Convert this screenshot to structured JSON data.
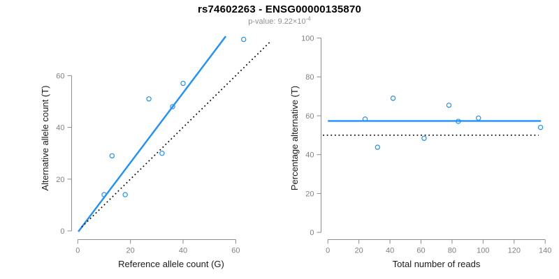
{
  "header": {
    "title": "rs74602263 - ENSG00000135870",
    "subtitle_prefix": "p-value: ",
    "subtitle_value": "9.22",
    "subtitle_times": "×10",
    "subtitle_exponent": "-4"
  },
  "colors": {
    "accent": "#1E90FF",
    "foreground": "#000000",
    "axis_line": "#8c8c8c",
    "tick_label": "#808080",
    "axis_title": "#1a1a1a",
    "subtitle": "#909090",
    "background": "#ffffff"
  },
  "chart_data": [
    {
      "type": "scatter",
      "name": "allele-counts-scatter",
      "xlabel": "Reference allele count (G)",
      "ylabel": "Alternative allele count (T)",
      "xlim": [
        -1.94,
        72.9
      ],
      "ylim": [
        -3.5,
        75.2
      ],
      "x_ticks": [
        0,
        20,
        40,
        60
      ],
      "y_ticks": [
        0,
        20,
        40,
        60
      ],
      "grid": false,
      "legend": "none",
      "points": [
        [
          10,
          14
        ],
        [
          13,
          29
        ],
        [
          18,
          14
        ],
        [
          27,
          51
        ],
        [
          32,
          30
        ],
        [
          36,
          48
        ],
        [
          40,
          57
        ],
        [
          63,
          74
        ]
      ],
      "lines": [
        {
          "name": "regression-line",
          "x1": 0.2,
          "y1": -0.3,
          "x2": 56.2,
          "y2": 75.2,
          "style": "solid",
          "color_key": "accent",
          "width": 2.4
        },
        {
          "name": "identity-line",
          "x1": 1.5,
          "y1": 1.5,
          "x2": 72.9,
          "y2": 72.9,
          "style": "dotted",
          "color_key": "foreground",
          "width": 1.7
        }
      ]
    },
    {
      "type": "scatter",
      "name": "percentage-vs-reads-scatter",
      "xlabel": "Total number of reads",
      "ylabel": "Percentage alternative (T)",
      "xlim": [
        -3.7,
        143.5
      ],
      "ylim": [
        -3.9,
        100.9
      ],
      "x_ticks": [
        0,
        20,
        40,
        60,
        80,
        100,
        120,
        140
      ],
      "y_ticks": [
        0,
        20,
        40,
        60,
        80,
        100
      ],
      "grid": false,
      "legend": "none",
      "points": [
        [
          24,
          58.3
        ],
        [
          32,
          43.8
        ],
        [
          42,
          69.0
        ],
        [
          62,
          48.4
        ],
        [
          78,
          65.4
        ],
        [
          84,
          57.1
        ],
        [
          97,
          58.8
        ],
        [
          137,
          54.0
        ]
      ],
      "lines": [
        {
          "name": "mean-percentage-line",
          "x1": 0,
          "y1": 57.3,
          "x2": 137.3,
          "y2": 57.3,
          "style": "solid",
          "color_key": "accent",
          "width": 2.4
        },
        {
          "name": "fifty-percent-line",
          "x1": -3.2,
          "y1": 50,
          "x2": 135.8,
          "y2": 50,
          "style": "dotted",
          "color_key": "foreground",
          "width": 1.7
        }
      ]
    }
  ]
}
